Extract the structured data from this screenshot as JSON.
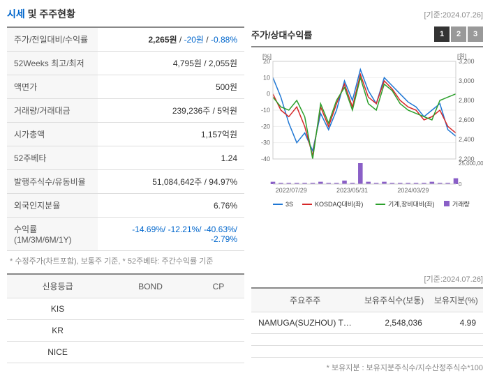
{
  "header": {
    "title_part1": "시세",
    "title_part2": " 및 주주현황",
    "basis": "[기준:2024.07.26]"
  },
  "info_rows": [
    {
      "label": "주가/전일대비/수익률",
      "value_parts": [
        {
          "text": "2,265원",
          "cls": "bold"
        },
        {
          "text": " / ",
          "cls": ""
        },
        {
          "text": "-20원",
          "cls": "blue"
        },
        {
          "text": " / ",
          "cls": ""
        },
        {
          "text": "-0.88%",
          "cls": "blue"
        }
      ]
    },
    {
      "label": "52Weeks 최고/최저",
      "value": "4,795원 / 2,055원"
    },
    {
      "label": "액면가",
      "value": "500원"
    },
    {
      "label": "거래량/거래대금",
      "value": "239,236주 / 5억원"
    },
    {
      "label": "시가총액",
      "value": "1,157억원"
    },
    {
      "label": "52주베타",
      "value": "1.24"
    },
    {
      "label": "발행주식수/유동비율",
      "value": "51,084,642주 / 94.97%"
    },
    {
      "label": "외국인지분율",
      "value": "6.76%"
    },
    {
      "label": "수익률 (1M/3M/6M/1Y)",
      "value_parts": [
        {
          "text": "-14.69%/ -12.21%/ -40.63%/ -2.79%",
          "cls": "blue"
        }
      ]
    }
  ],
  "note1": "* 수정주가(차트포함), 보통주 기준, * 52주베타: 주간수익률 기준",
  "chart": {
    "title": "주가/상대수익률",
    "tabs": [
      "1",
      "2",
      "3"
    ],
    "active_tab": 0,
    "y_left_label": "[%]",
    "y_right_label": "[원]",
    "y_left_ticks": [
      20,
      10,
      0,
      -10,
      -20,
      -30,
      -40
    ],
    "y_right_ticks": [
      3200,
      3000,
      2800,
      2600,
      2400,
      2200
    ],
    "x_ticks": [
      "2022/07/29",
      "2023/05/31",
      "2024/03/29"
    ],
    "vol_max": "25,000,000",
    "vol_zero": "0",
    "series": [
      {
        "name": "3S",
        "color": "#1f77d4",
        "data": [
          10,
          -2,
          -18,
          -30,
          -24,
          -35,
          -12,
          -22,
          -10,
          8,
          -4,
          15,
          2,
          -6,
          10,
          5,
          0,
          -5,
          -8,
          -14,
          -10,
          -6,
          -22,
          -26
        ]
      },
      {
        "name": "KOSDAQ대비(좌)",
        "color": "#d62728",
        "data": [
          0,
          -10,
          -14,
          -8,
          -20,
          -38,
          -8,
          -20,
          -6,
          6,
          -8,
          12,
          -2,
          -6,
          8,
          3,
          -4,
          -8,
          -10,
          -16,
          -14,
          -10,
          -20,
          -24
        ]
      },
      {
        "name": "기계,장비대비(좌)",
        "color": "#2ca02c",
        "data": [
          -2,
          -8,
          -10,
          -4,
          -14,
          -40,
          -6,
          -18,
          -4,
          4,
          -10,
          10,
          -6,
          -10,
          6,
          2,
          -6,
          -10,
          -12,
          -14,
          -16,
          -4,
          -2,
          0
        ]
      }
    ],
    "volume": {
      "name": "거래량",
      "color": "#8a5fc7",
      "data": [
        2,
        1,
        1,
        1,
        1,
        1,
        2,
        1,
        1,
        3,
        1,
        18,
        2,
        1,
        2,
        1,
        1,
        1,
        1,
        1,
        2,
        1,
        1,
        5
      ]
    },
    "legend": [
      {
        "label": "3S",
        "color": "#1f77d4",
        "type": "line"
      },
      {
        "label": "KOSDAQ대비(좌)",
        "color": "#d62728",
        "type": "line"
      },
      {
        "label": "기계,장비대비(좌)",
        "color": "#2ca02c",
        "type": "line"
      },
      {
        "label": "거래량",
        "color": "#8a5fc7",
        "type": "bar"
      }
    ]
  },
  "credit": {
    "headers": [
      "신용등급",
      "BOND",
      "CP"
    ],
    "rows": [
      {
        "name": "KIS",
        "bond": "",
        "cp": ""
      },
      {
        "name": "KR",
        "bond": "",
        "cp": ""
      },
      {
        "name": "NICE",
        "bond": "",
        "cp": ""
      }
    ]
  },
  "shareholders": {
    "basis": "[기준:2024.07.26]",
    "headers": [
      "주요주주",
      "보유주식수(보통)",
      "보유지분(%)"
    ],
    "rows": [
      {
        "name": "NAMUGA(SUZHOU) T…",
        "shares": "2,548,036",
        "pct": "4.99"
      },
      {
        "name": "",
        "shares": "",
        "pct": ""
      },
      {
        "name": "",
        "shares": "",
        "pct": ""
      }
    ],
    "note": "* 보유지분 : 보유지분주식수/지수산정주식수*100"
  }
}
